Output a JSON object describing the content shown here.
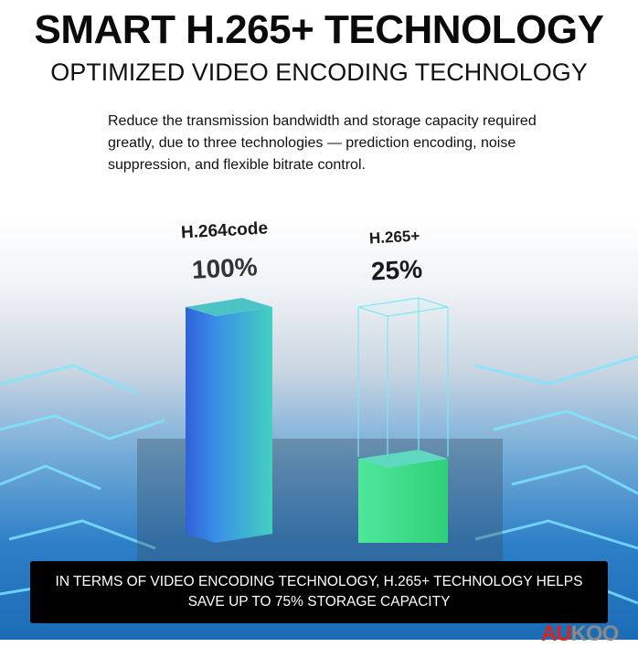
{
  "header": {
    "title": "SMART H.265+ TECHNOLOGY",
    "subtitle": "OPTIMIZED VIDEO ENCODING TECHNOLOGY",
    "description": "Reduce the transmission bandwidth and storage capacity required greatly, due to three  technologies — prediction encoding, noise suppression, and flexible bitrate control."
  },
  "comparison": [
    {
      "label": "H.264code",
      "value_text": "100%",
      "value": 100,
      "color": "#2f7de0"
    },
    {
      "label": "H.265+",
      "value_text": "25%",
      "value": 25,
      "color": "#3fe08a"
    }
  ],
  "banner": {
    "line1": "IN TERMS OF VIDEO ENCODING TECHNOLOGY, H.265+ TECHNOLOGY HELPS",
    "line2": "SAVE UP TO 75% STORAGE CAPACITY"
  },
  "logo": {
    "text_red": "AU",
    "text_grey": "KOO",
    "red": "#d9251c"
  }
}
